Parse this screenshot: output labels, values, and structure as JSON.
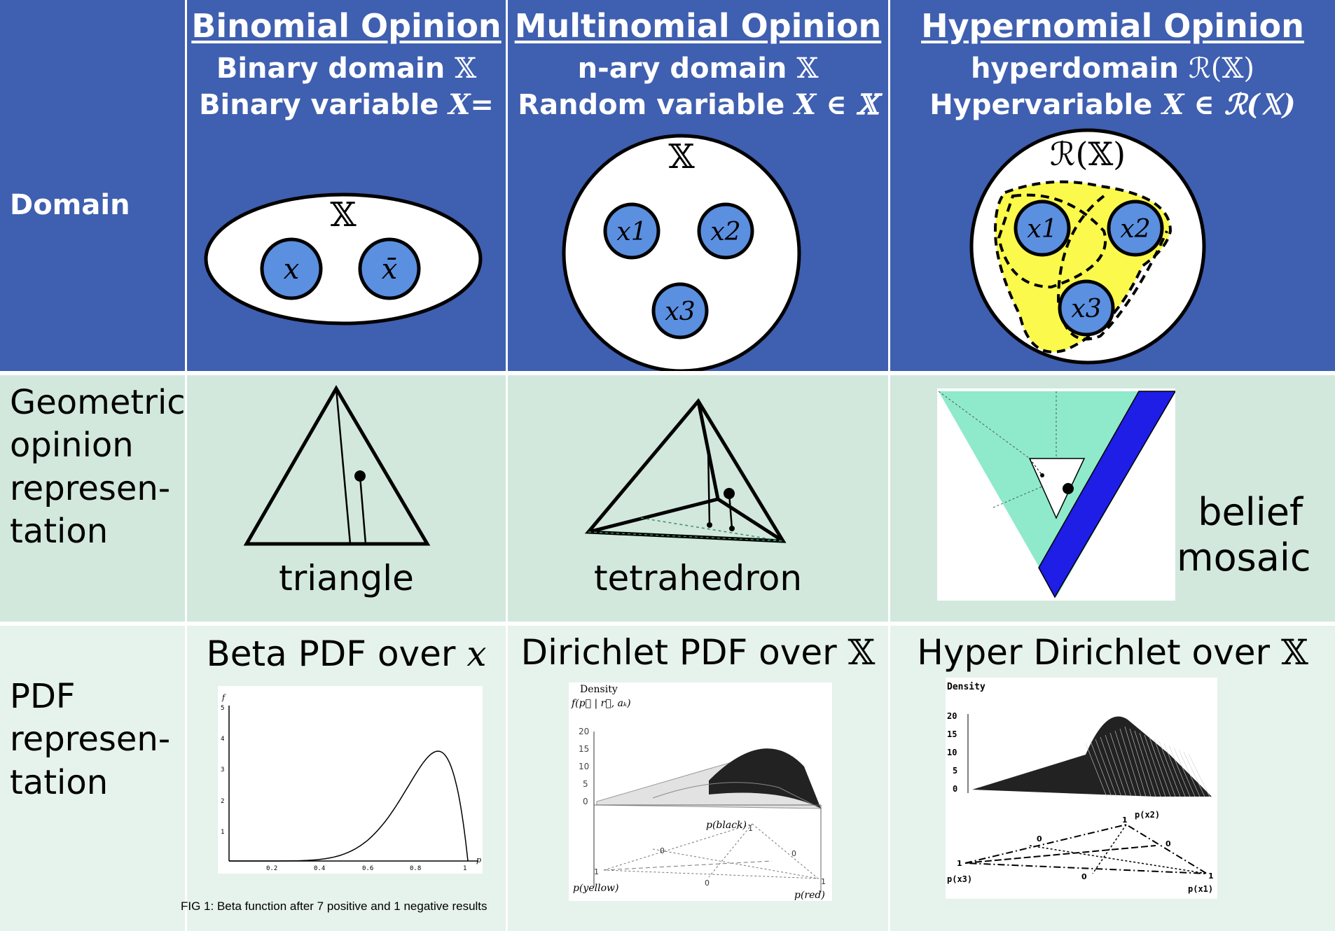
{
  "rows": {
    "domain": "Domain",
    "geometric": [
      "Geometric",
      "opinion",
      "represen-",
      "tation"
    ],
    "pdf": [
      "PDF",
      "represen-",
      "tation"
    ]
  },
  "columns": {
    "binomial": {
      "title": "Binomial  Opinion",
      "line1": "Binary domain ",
      "line1_sym": "𝕏",
      "line2": "Binary variable ",
      "line2_sym": "X= x",
      "domain_label": "𝕏",
      "elements": [
        "x",
        "x̄"
      ],
      "geo_caption": "triangle",
      "pdf_title": "Beta PDF over ",
      "pdf_sym": "x"
    },
    "multinomial": {
      "title": "Multinomial Opinion",
      "line1": "n-ary domain ",
      "line1_sym": "𝕏",
      "line2": "Random variable ",
      "line2_sym": "X ∈ 𝕏",
      "domain_label": "𝕏",
      "elements": [
        "x1",
        "x2",
        "x3"
      ],
      "geo_caption": "tetrahedron",
      "pdf_title": "Dirichlet PDF over ",
      "pdf_sym": "𝕏"
    },
    "hypernomial": {
      "title": "Hypernomial Opinion",
      "line1": "hyperdomain ",
      "line1_sym": "ℛ(𝕏)",
      "line2": "Hypervariable  ",
      "line2_sym": "X ∈ ℛ(𝕏)",
      "domain_label": "ℛ(𝕏)",
      "elements": [
        "x1",
        "x2",
        "x3"
      ],
      "geo_caption": [
        "belief",
        "mosaic"
      ],
      "pdf_title": "Hyper Dirichlet over ",
      "pdf_sym": "𝕏"
    }
  },
  "beta_plot": {
    "y_label": "f",
    "x_label": "p",
    "y_ticks": [
      "1",
      "2",
      "3",
      "4",
      "5"
    ],
    "x_ticks": [
      "0.2",
      "0.4",
      "0.6",
      "0.8",
      "1"
    ]
  },
  "dirichlet_plot": {
    "density": "Density",
    "formula": "f(p⃗ | r⃗, aₖ)",
    "z_ticks": [
      "20",
      "15",
      "10",
      "5",
      "0"
    ],
    "axes": [
      "p(black)",
      "p(yellow)",
      "p(red)"
    ],
    "corner_ticks": [
      "1",
      "0",
      "0",
      "0",
      "1",
      "1"
    ]
  },
  "hyper_plot": {
    "density": "Density",
    "z_ticks": [
      "20",
      "15",
      "10",
      "5",
      "0"
    ],
    "axes": [
      "p(x2)",
      "p(x3)",
      "p(x1)"
    ],
    "corner_ticks": [
      "1",
      "0",
      "0",
      "0",
      "1",
      "1"
    ]
  },
  "fig_caption": "FIG 1: Beta function after 7 positive and 1 negative results",
  "colors": {
    "header_blue": "#3f5fb0",
    "row_green": "#d2e8dd",
    "row_green_light": "#e6f2ec",
    "element_blue": "#5b8fe0",
    "hyper_yellow": "#fbfa4c",
    "mosaic_green": "#8eeacb",
    "mosaic_blue": "#1e1ee6"
  }
}
